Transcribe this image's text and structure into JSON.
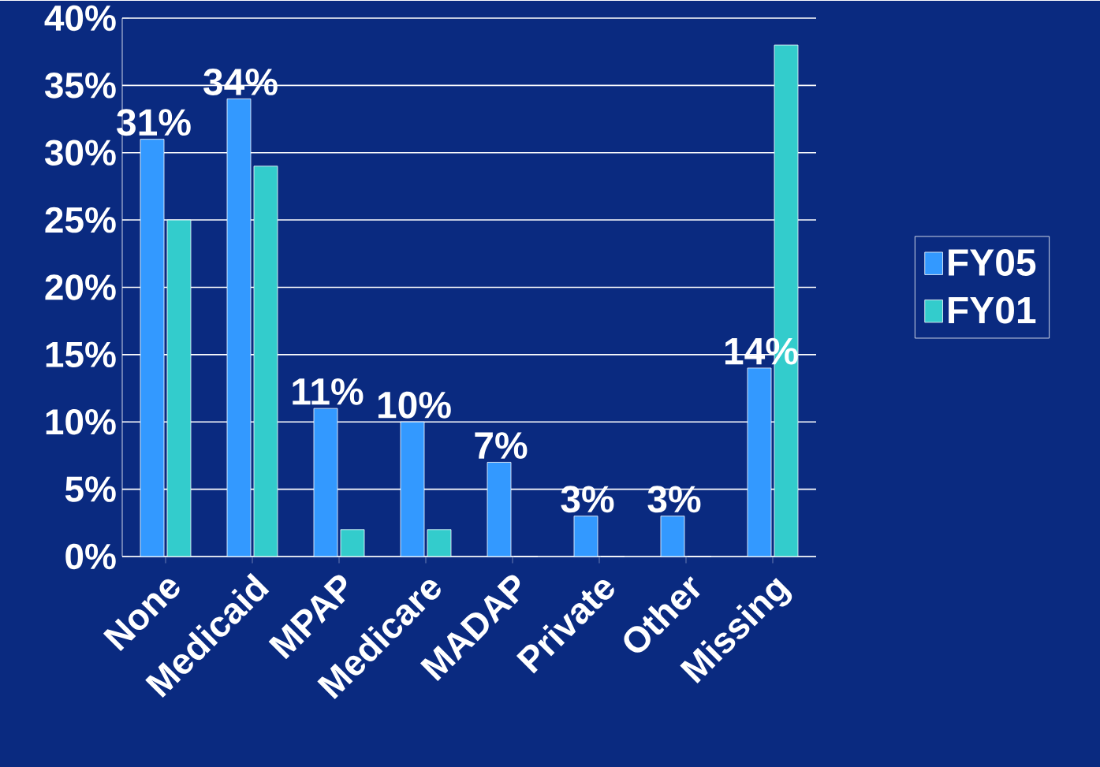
{
  "chart_data": {
    "type": "bar",
    "categories": [
      "None",
      "Medicaid",
      "MPAP",
      "Medicare",
      "MADAP",
      "Private",
      "Other",
      "Missing"
    ],
    "series": [
      {
        "name": "FY05",
        "color": "#3399ff",
        "values": [
          31,
          34,
          11,
          10,
          7,
          3,
          3,
          14
        ],
        "value_labels": [
          "31%",
          "34%",
          "11%",
          "10%",
          "7%",
          "3%",
          "3%",
          "14%"
        ]
      },
      {
        "name": "FY01",
        "color": "#33cccc",
        "values": [
          25,
          29,
          2,
          2,
          0,
          0,
          0,
          38
        ]
      }
    ],
    "ylim": [
      0,
      40
    ],
    "yticks": [
      {
        "value": 0,
        "label": "0%"
      },
      {
        "value": 5,
        "label": "5%"
      },
      {
        "value": 10,
        "label": "10%"
      },
      {
        "value": 15,
        "label": "15%"
      },
      {
        "value": 20,
        "label": "20%"
      },
      {
        "value": 25,
        "label": "25%"
      },
      {
        "value": 30,
        "label": "30%"
      },
      {
        "value": 35,
        "label": "35%"
      },
      {
        "value": 40,
        "label": "40%"
      }
    ],
    "grid": "y",
    "legend": "right"
  }
}
